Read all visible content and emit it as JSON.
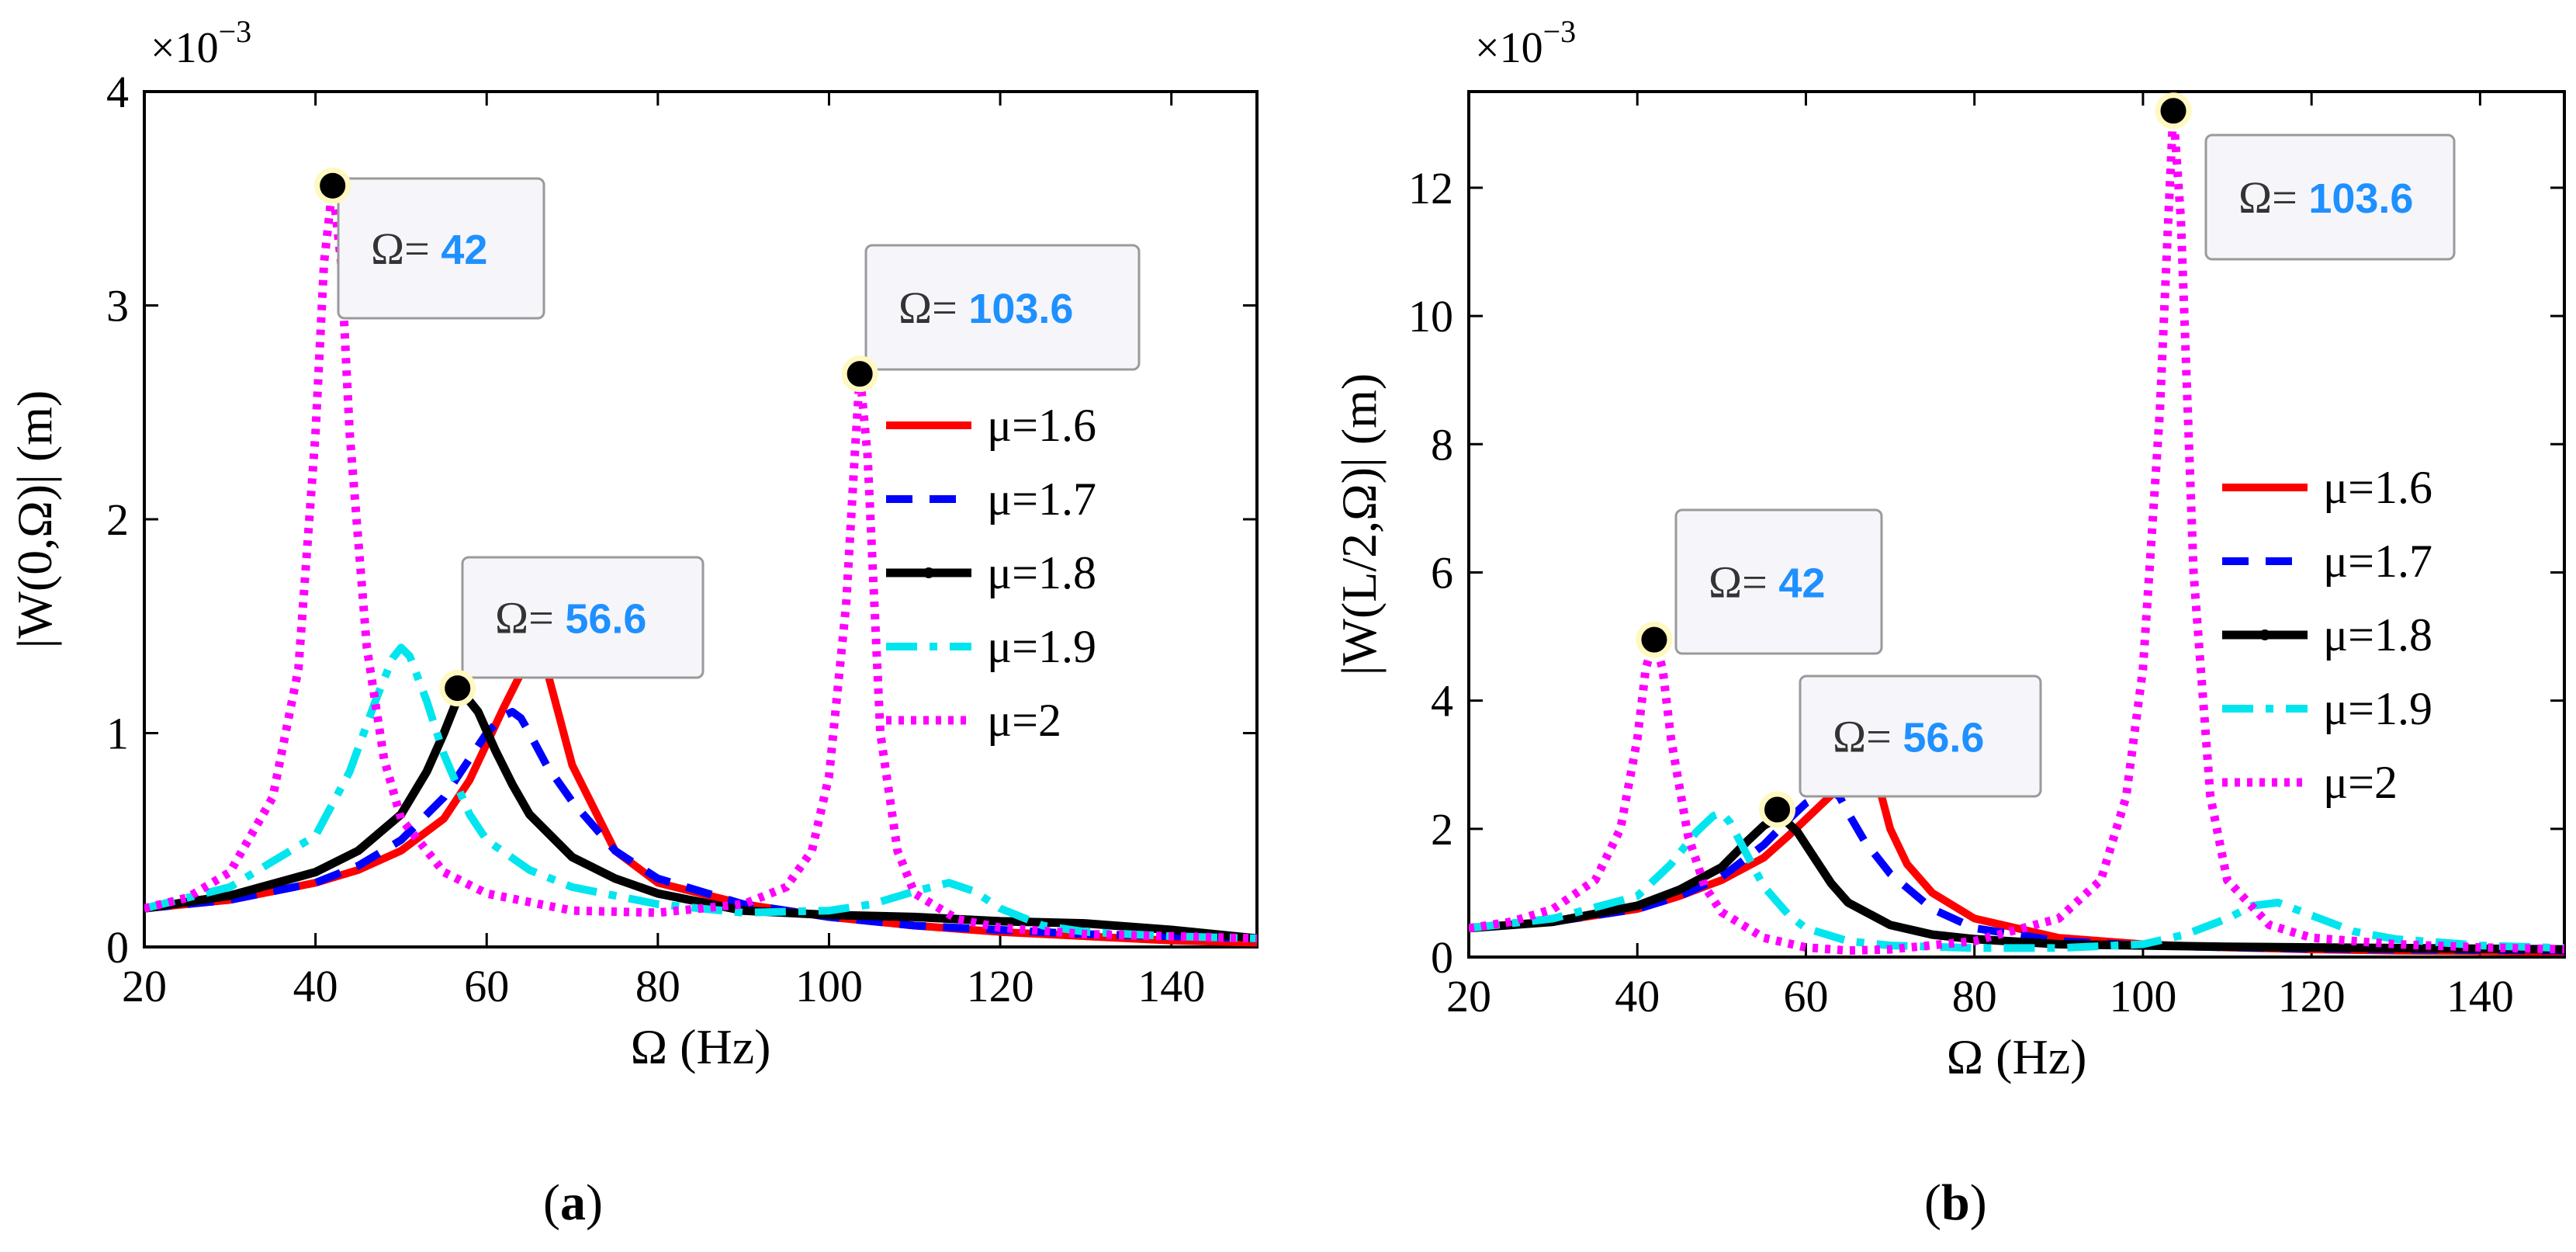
{
  "chart_data": [
    {
      "type": "line",
      "panel_label": "a",
      "title": "",
      "xlabel": "Ω (Hz)",
      "ylabel": "|W(0,Ω)| (m)",
      "y_multiplier": "×10",
      "y_exponent": "−3",
      "xlim": [
        20,
        150
      ],
      "ylim": [
        0,
        4
      ],
      "xticks": [
        20,
        40,
        60,
        80,
        100,
        120,
        140
      ],
      "yticks": [
        0,
        1,
        2,
        3,
        4
      ],
      "grid": false,
      "legend_position": "right",
      "series": [
        {
          "name": "μ=1.6",
          "color": "#ff0000",
          "style": "solid",
          "x": [
            20,
            30,
            40,
            45,
            50,
            55,
            58,
            60,
            62,
            64,
            65,
            66,
            67,
            68,
            70,
            75,
            80,
            90,
            100,
            110,
            120,
            130,
            140,
            150
          ],
          "y": [
            0.18,
            0.22,
            0.3,
            0.36,
            0.45,
            0.6,
            0.78,
            0.95,
            1.12,
            1.28,
            1.35,
            1.36,
            1.3,
            1.15,
            0.85,
            0.45,
            0.3,
            0.2,
            0.14,
            0.1,
            0.07,
            0.05,
            0.03,
            0.02
          ]
        },
        {
          "name": "μ=1.7",
          "color": "#0000ff",
          "style": "dashed",
          "x": [
            20,
            30,
            40,
            45,
            50,
            55,
            58,
            60,
            62,
            63,
            64,
            65,
            67,
            70,
            75,
            80,
            90,
            100,
            110,
            120,
            130,
            140,
            150
          ],
          "y": [
            0.18,
            0.22,
            0.3,
            0.38,
            0.5,
            0.7,
            0.88,
            1.0,
            1.08,
            1.1,
            1.07,
            1.0,
            0.85,
            0.68,
            0.45,
            0.32,
            0.2,
            0.14,
            0.1,
            0.08,
            0.06,
            0.05,
            0.04
          ]
        },
        {
          "name": "μ=1.8",
          "color": "#000000",
          "style": "solid-dot",
          "x": [
            20,
            30,
            40,
            45,
            50,
            53,
            55,
            57,
            59,
            61,
            63,
            65,
            70,
            75,
            80,
            90,
            100,
            110,
            120,
            130,
            140,
            150
          ],
          "y": [
            0.18,
            0.24,
            0.35,
            0.45,
            0.62,
            0.82,
            1.0,
            1.2,
            1.1,
            0.92,
            0.76,
            0.62,
            0.42,
            0.32,
            0.25,
            0.17,
            0.15,
            0.14,
            0.12,
            0.11,
            0.08,
            0.04
          ]
        },
        {
          "name": "μ=1.9",
          "color": "#00e5ee",
          "style": "dashdot",
          "x": [
            20,
            30,
            40,
            44,
            47,
            49,
            50,
            51,
            53,
            55,
            58,
            60,
            65,
            70,
            80,
            90,
            100,
            105,
            110,
            114,
            117,
            120,
            125,
            130,
            140,
            150
          ],
          "y": [
            0.18,
            0.28,
            0.52,
            0.82,
            1.15,
            1.35,
            1.4,
            1.36,
            1.15,
            0.9,
            0.62,
            0.5,
            0.36,
            0.28,
            0.2,
            0.16,
            0.17,
            0.2,
            0.26,
            0.3,
            0.26,
            0.18,
            0.1,
            0.07,
            0.05,
            0.04
          ]
        },
        {
          "name": "μ=2",
          "color": "#ff00ff",
          "style": "dotted",
          "x": [
            20,
            25,
            30,
            35,
            38,
            40,
            41,
            42,
            43,
            44,
            46,
            48,
            50,
            55,
            60,
            70,
            80,
            90,
            95,
            98,
            100,
            102,
            103,
            103.6,
            104.5,
            106,
            108,
            110,
            115,
            120,
            130,
            140,
            150
          ],
          "y": [
            0.18,
            0.23,
            0.35,
            0.7,
            1.3,
            2.4,
            3.2,
            3.56,
            3.2,
            2.4,
            1.4,
            0.88,
            0.6,
            0.35,
            0.25,
            0.17,
            0.16,
            0.2,
            0.28,
            0.45,
            0.8,
            1.6,
            2.3,
            2.68,
            2.3,
            1.0,
            0.45,
            0.25,
            0.13,
            0.09,
            0.06,
            0.05,
            0.04
          ]
        }
      ],
      "markers": [
        {
          "x": 42,
          "y": 3.56,
          "label": "Ω=",
          "value": "42"
        },
        {
          "x": 56.6,
          "y": 1.21,
          "label": "Ω=",
          "value": "56.6"
        },
        {
          "x": 103.6,
          "y": 2.68,
          "label": "Ω=",
          "value": "103.6"
        }
      ]
    },
    {
      "type": "line",
      "panel_label": "b",
      "title": "",
      "xlabel": "Ω (Hz)",
      "ylabel": "|W(L/2,Ω)| (m)",
      "y_multiplier": "×10",
      "y_exponent": "−3",
      "xlim": [
        20,
        150
      ],
      "ylim": [
        0,
        13.5
      ],
      "xticks": [
        20,
        40,
        60,
        80,
        100,
        120,
        140
      ],
      "yticks": [
        0,
        2,
        4,
        6,
        8,
        10,
        12
      ],
      "grid": false,
      "legend_position": "right",
      "series": [
        {
          "name": "μ=1.6",
          "color": "#ff0000",
          "style": "solid",
          "x": [
            20,
            30,
            40,
            45,
            50,
            55,
            58,
            60,
            62,
            64,
            66,
            67,
            68,
            69,
            70,
            72,
            75,
            80,
            90,
            100,
            110,
            120,
            130,
            140,
            150
          ],
          "y": [
            0.45,
            0.55,
            0.75,
            0.95,
            1.2,
            1.55,
            1.9,
            2.15,
            2.4,
            2.65,
            2.85,
            2.95,
            2.9,
            2.5,
            2.0,
            1.45,
            1.0,
            0.6,
            0.3,
            0.2,
            0.15,
            0.12,
            0.1,
            0.09,
            0.08
          ]
        },
        {
          "name": "μ=1.7",
          "color": "#0000ff",
          "style": "dashed",
          "x": [
            20,
            30,
            40,
            45,
            50,
            55,
            58,
            60,
            62,
            63,
            64,
            65,
            67,
            70,
            75,
            80,
            90,
            100,
            110,
            120,
            130,
            140,
            150
          ],
          "y": [
            0.45,
            0.55,
            0.75,
            0.95,
            1.25,
            1.75,
            2.15,
            2.4,
            2.55,
            2.6,
            2.5,
            2.25,
            1.8,
            1.3,
            0.75,
            0.45,
            0.25,
            0.18,
            0.15,
            0.13,
            0.12,
            0.11,
            0.1
          ]
        },
        {
          "name": "μ=1.8",
          "color": "#000000",
          "style": "solid-dot",
          "x": [
            20,
            30,
            40,
            45,
            50,
            53,
            55,
            57,
            59,
            61,
            63,
            65,
            70,
            75,
            80,
            90,
            100,
            110,
            120,
            130,
            140,
            150
          ],
          "y": [
            0.45,
            0.55,
            0.8,
            1.05,
            1.4,
            1.8,
            2.05,
            2.2,
            1.95,
            1.55,
            1.15,
            0.85,
            0.5,
            0.35,
            0.28,
            0.2,
            0.18,
            0.16,
            0.15,
            0.14,
            0.13,
            0.12
          ]
        },
        {
          "name": "μ=1.9",
          "color": "#00e5ee",
          "style": "dashdot",
          "x": [
            20,
            30,
            40,
            44,
            47,
            49,
            50,
            51,
            53,
            55,
            58,
            60,
            65,
            70,
            80,
            90,
            100,
            105,
            110,
            113,
            116,
            120,
            125,
            130,
            140,
            150
          ],
          "y": [
            0.45,
            0.6,
            0.95,
            1.45,
            1.95,
            2.2,
            2.25,
            2.1,
            1.6,
            1.1,
            0.65,
            0.45,
            0.25,
            0.18,
            0.14,
            0.14,
            0.2,
            0.35,
            0.6,
            0.8,
            0.85,
            0.65,
            0.4,
            0.28,
            0.18,
            0.14
          ]
        },
        {
          "name": "μ=2",
          "color": "#ff00ff",
          "style": "dotted",
          "x": [
            20,
            25,
            30,
            35,
            38,
            40,
            41,
            42,
            43,
            44,
            46,
            48,
            50,
            55,
            60,
            65,
            70,
            80,
            90,
            95,
            98,
            100,
            102,
            103,
            103.6,
            104.5,
            106,
            108,
            110,
            115,
            120,
            130,
            140,
            150
          ],
          "y": [
            0.45,
            0.55,
            0.75,
            1.2,
            2.0,
            3.4,
            4.5,
            4.95,
            4.5,
            3.4,
            1.9,
            1.1,
            0.7,
            0.3,
            0.15,
            0.1,
            0.12,
            0.25,
            0.6,
            1.2,
            2.5,
            4.5,
            8.5,
            11.5,
            13.2,
            11.5,
            6.0,
            2.5,
            1.2,
            0.5,
            0.3,
            0.2,
            0.15,
            0.12
          ]
        }
      ],
      "markers": [
        {
          "x": 42,
          "y": 4.95,
          "label": "Ω=",
          "value": "42"
        },
        {
          "x": 56.6,
          "y": 2.3,
          "label": "Ω=",
          "value": "56.6"
        },
        {
          "x": 103.6,
          "y": 13.2,
          "label": "Ω=",
          "value": "103.6"
        }
      ]
    }
  ],
  "captions": [
    {
      "open": "(",
      "letter": "a",
      "close": ")"
    },
    {
      "open": "(",
      "letter": "b",
      "close": ")"
    }
  ]
}
